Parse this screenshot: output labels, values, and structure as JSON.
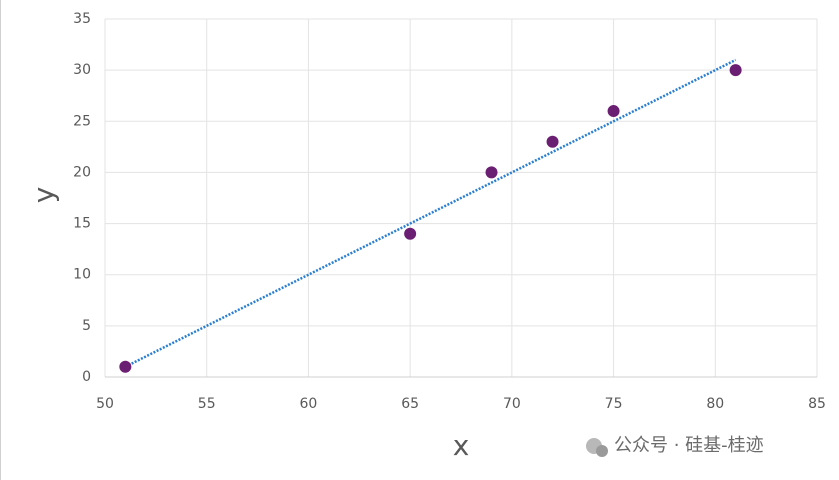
{
  "chart_data": {
    "type": "scatter",
    "x_label": "x",
    "y_label": "y",
    "series": [
      {
        "color": "#6b1f73",
        "x": [
          51,
          65,
          69,
          72,
          75,
          81
        ],
        "values": [
          1,
          14,
          20,
          23,
          26,
          30
        ]
      }
    ],
    "trendline": {
      "color": "#2a7fd0",
      "x": [
        51,
        81
      ],
      "values": [
        1,
        31
      ]
    },
    "xlim": [
      50,
      85
    ],
    "xticks": [
      50,
      55,
      60,
      65,
      70,
      75,
      80,
      85
    ],
    "ylim": [
      0,
      35
    ],
    "yticks": [
      0,
      5,
      10,
      15,
      20,
      25,
      30,
      35
    ],
    "grid": true
  },
  "watermark": "公众号 · 硅基-桂迹"
}
